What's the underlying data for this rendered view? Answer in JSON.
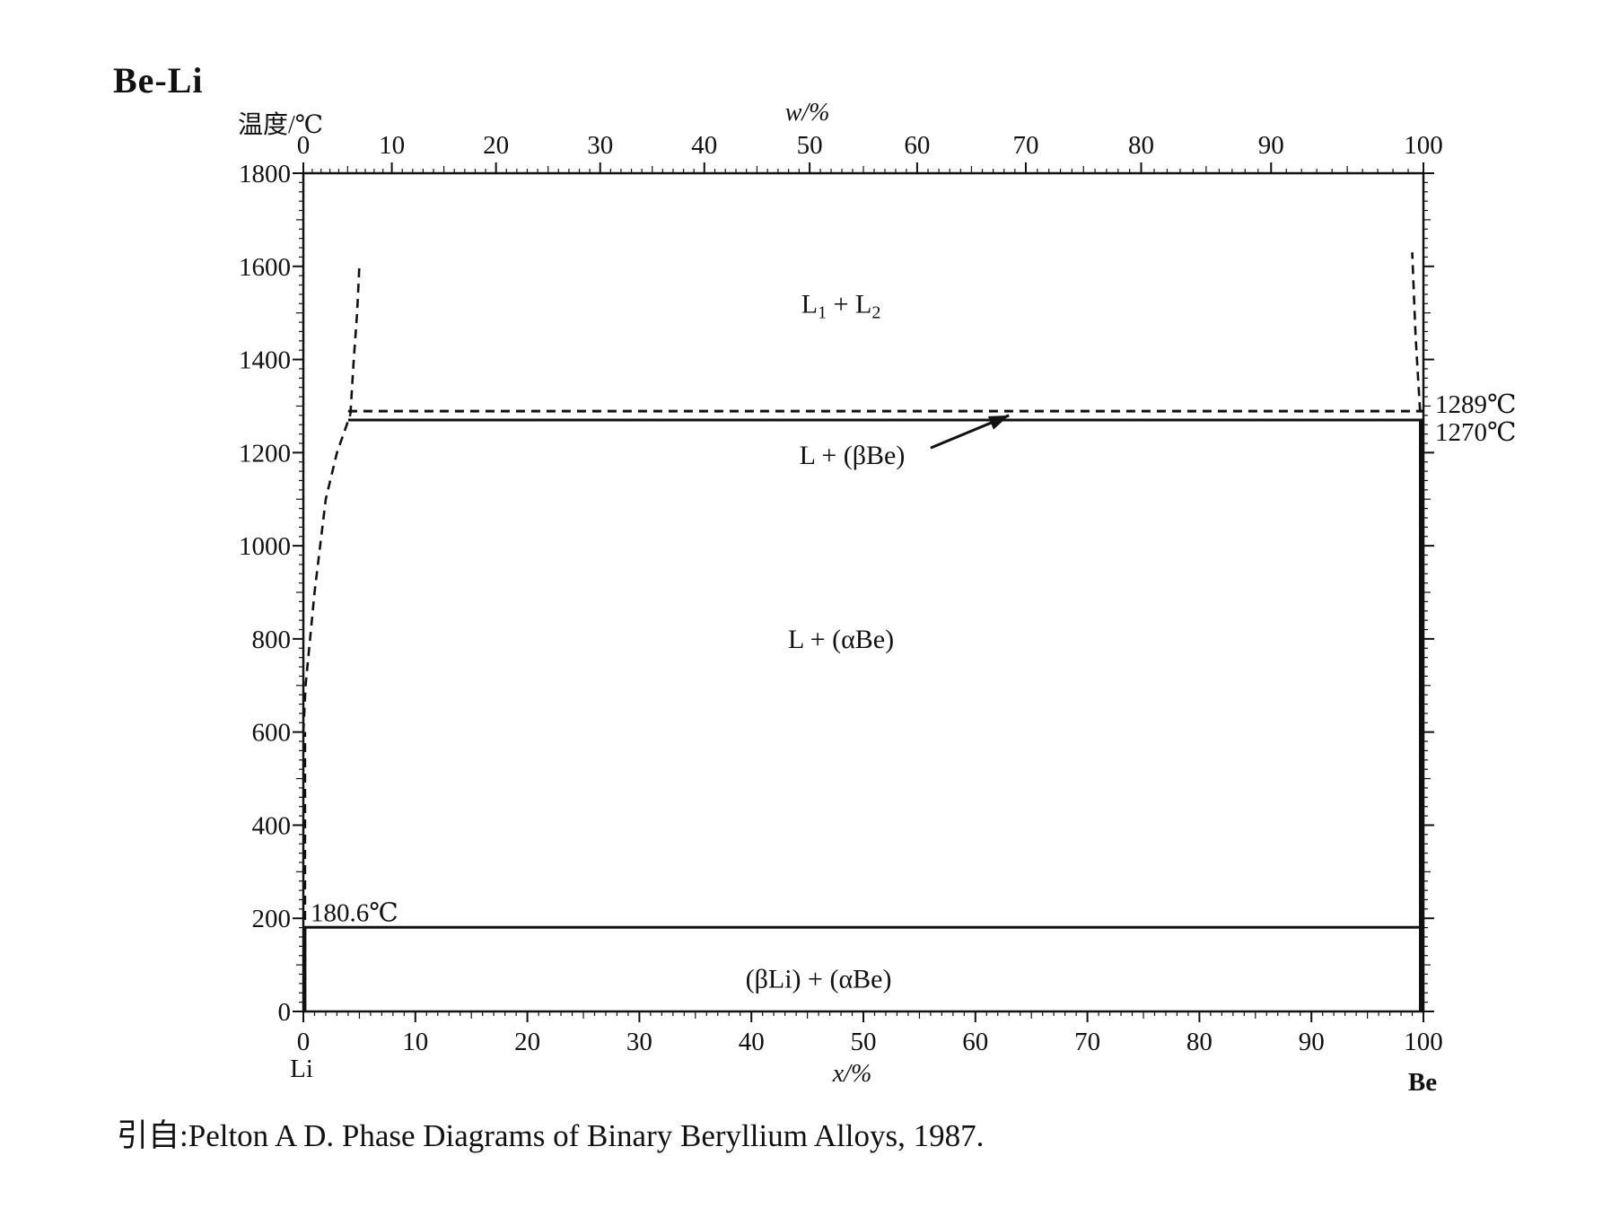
{
  "title": "Be-Li",
  "source": "引自:Pelton A D. Phase Diagrams of Binary Beryllium Alloys, 1987.",
  "chart_data": {
    "type": "phase-diagram",
    "ylabel": "温度/℃",
    "xlabel_bottom": "x/%",
    "xlabel_top": "w/%",
    "ylim": [
      0,
      1800
    ],
    "xlim": [
      0,
      100
    ],
    "y_ticks": [
      0,
      200,
      400,
      600,
      800,
      1000,
      1200,
      1400,
      1600,
      1800
    ],
    "x_ticks_bottom": [
      0,
      10,
      20,
      30,
      40,
      50,
      60,
      70,
      80,
      90,
      100
    ],
    "x_ticks_top": [
      0,
      10,
      20,
      30,
      40,
      50,
      60,
      70,
      80,
      90,
      100
    ],
    "top_axis_atomic_positions": [
      0,
      7.9,
      17.2,
      26.5,
      35.8,
      45.2,
      54.8,
      64.5,
      74.8,
      86.4,
      100
    ],
    "left_component": "Li",
    "right_component": "Be",
    "isotherms": [
      {
        "label": "1289℃",
        "temp": 1289,
        "x_from": 4,
        "x_to": 100,
        "style": "dashed"
      },
      {
        "label": "1270℃",
        "temp": 1270,
        "x_from": 4,
        "x_to": 100,
        "style": "solid"
      },
      {
        "label": "180.6℃",
        "temp": 180.6,
        "x_from": 0,
        "x_to": 100,
        "style": "solid"
      }
    ],
    "liquidus_left": [
      [
        0,
        600
      ],
      [
        0.2,
        700
      ],
      [
        0.6,
        800
      ],
      [
        1.0,
        900
      ],
      [
        1.5,
        1000
      ],
      [
        2.0,
        1100
      ],
      [
        3.0,
        1200
      ],
      [
        4.2,
        1282
      ]
    ],
    "miscibility_left": [
      [
        4.2,
        1282
      ],
      [
        4.5,
        1400
      ],
      [
        4.8,
        1500
      ],
      [
        5.0,
        1600
      ]
    ],
    "miscibility_right": [
      [
        99.7,
        1289
      ],
      [
        99.3,
        1450
      ],
      [
        99.0,
        1630
      ]
    ],
    "regions": [
      {
        "label_main": "L",
        "sub1": "1",
        "sep": " + L",
        "sub2": "2",
        "x": 48,
        "temp": 1500
      },
      {
        "label": "L + (βBe)",
        "x": 49,
        "temp": 1195
      },
      {
        "label": "L + (αBe)",
        "x": 48,
        "temp": 800
      },
      {
        "label": "(βLi) + (αBe)",
        "x": 46,
        "temp": 70
      }
    ],
    "annotation_arrow": {
      "from": [
        56,
        1210
      ],
      "to": [
        63,
        1280
      ]
    }
  }
}
